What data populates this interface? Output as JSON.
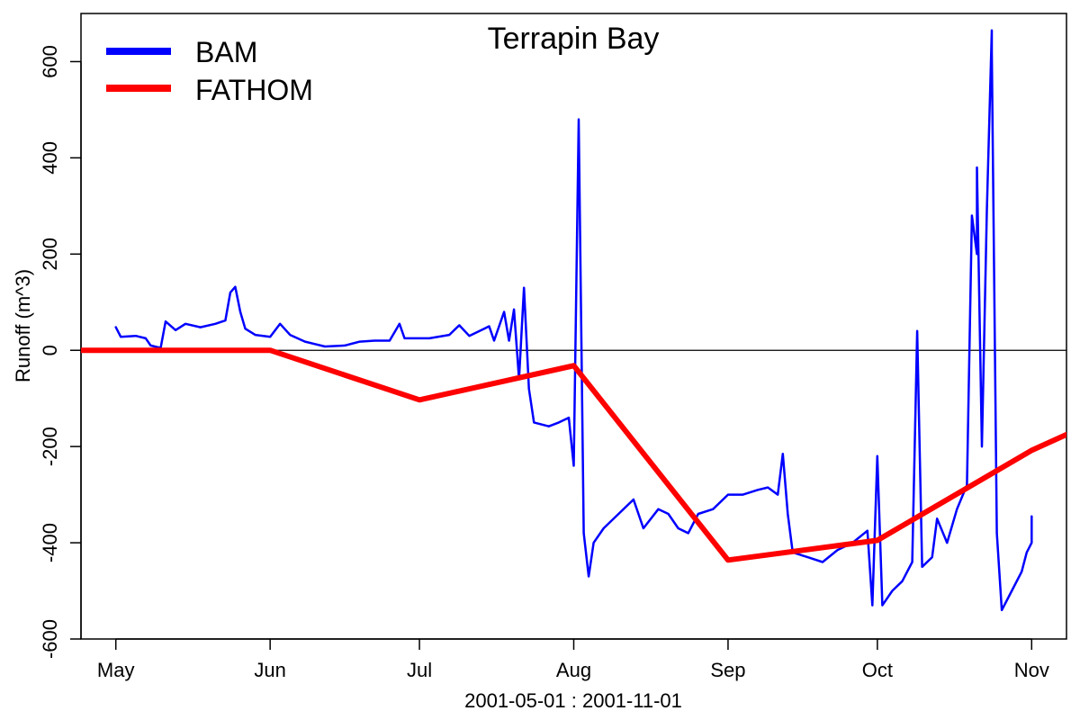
{
  "chart_data": {
    "type": "line",
    "title": "Terrapin Bay",
    "xlabel": "2001-05-01 : 2001-11-01",
    "ylabel": "Runoff (m^3)",
    "xlim": [
      "2001-04-24",
      "2001-11-08"
    ],
    "ylim": [
      -600,
      700
    ],
    "x_ticks": [
      {
        "date": "2001-05-01",
        "label": "May"
      },
      {
        "date": "2001-06-01",
        "label": "Jun"
      },
      {
        "date": "2001-07-01",
        "label": "Jul"
      },
      {
        "date": "2001-08-01",
        "label": "Aug"
      },
      {
        "date": "2001-09-01",
        "label": "Sep"
      },
      {
        "date": "2001-10-01",
        "label": "Oct"
      },
      {
        "date": "2001-11-01",
        "label": "Nov"
      }
    ],
    "y_ticks": [
      -600,
      -400,
      -200,
      0,
      200,
      400,
      600
    ],
    "zero_line": true,
    "grid": false,
    "legend": {
      "position": "top-left",
      "entries": [
        "BAM",
        "FATHOM"
      ]
    },
    "series": [
      {
        "name": "BAM",
        "color": "#0000ff",
        "points": [
          [
            "2001-05-01",
            48
          ],
          [
            "2001-05-02",
            28
          ],
          [
            "2001-05-05",
            30
          ],
          [
            "2001-05-07",
            25
          ],
          [
            "2001-05-08",
            10
          ],
          [
            "2001-05-10",
            5
          ],
          [
            "2001-05-11",
            60
          ],
          [
            "2001-05-13",
            42
          ],
          [
            "2001-05-15",
            55
          ],
          [
            "2001-05-18",
            48
          ],
          [
            "2001-05-21",
            55
          ],
          [
            "2001-05-23",
            62
          ],
          [
            "2001-05-24",
            120
          ],
          [
            "2001-05-25",
            132
          ],
          [
            "2001-05-26",
            80
          ],
          [
            "2001-05-27",
            45
          ],
          [
            "2001-05-29",
            32
          ],
          [
            "2001-06-01",
            28
          ],
          [
            "2001-06-03",
            55
          ],
          [
            "2001-06-05",
            32
          ],
          [
            "2001-06-08",
            18
          ],
          [
            "2001-06-12",
            8
          ],
          [
            "2001-06-16",
            10
          ],
          [
            "2001-06-19",
            18
          ],
          [
            "2001-06-22",
            20
          ],
          [
            "2001-06-25",
            20
          ],
          [
            "2001-06-27",
            55
          ],
          [
            "2001-06-28",
            25
          ],
          [
            "2001-07-03",
            25
          ],
          [
            "2001-07-07",
            32
          ],
          [
            "2001-07-09",
            52
          ],
          [
            "2001-07-11",
            30
          ],
          [
            "2001-07-14",
            45
          ],
          [
            "2001-07-15",
            50
          ],
          [
            "2001-07-16",
            20
          ],
          [
            "2001-07-18",
            80
          ],
          [
            "2001-07-19",
            20
          ],
          [
            "2001-07-20",
            85
          ],
          [
            "2001-07-21",
            -60
          ],
          [
            "2001-07-22",
            130
          ],
          [
            "2001-07-23",
            -80
          ],
          [
            "2001-07-24",
            -150
          ],
          [
            "2001-07-27",
            -158
          ],
          [
            "2001-07-29",
            -150
          ],
          [
            "2001-07-31",
            -140
          ],
          [
            "2001-08-01",
            -240
          ],
          [
            "2001-08-02",
            480
          ],
          [
            "2001-08-03",
            -380
          ],
          [
            "2001-08-04",
            -470
          ],
          [
            "2001-08-05",
            -400
          ],
          [
            "2001-08-07",
            -370
          ],
          [
            "2001-08-10",
            -340
          ],
          [
            "2001-08-13",
            -310
          ],
          [
            "2001-08-15",
            -370
          ],
          [
            "2001-08-18",
            -330
          ],
          [
            "2001-08-20",
            -340
          ],
          [
            "2001-08-22",
            -370
          ],
          [
            "2001-08-24",
            -380
          ],
          [
            "2001-08-26",
            -340
          ],
          [
            "2001-08-29",
            -330
          ],
          [
            "2001-09-01",
            -300
          ],
          [
            "2001-09-04",
            -300
          ],
          [
            "2001-09-07",
            -290
          ],
          [
            "2001-09-09",
            -285
          ],
          [
            "2001-09-11",
            -300
          ],
          [
            "2001-09-12",
            -215
          ],
          [
            "2001-09-13",
            -340
          ],
          [
            "2001-09-14",
            -420
          ],
          [
            "2001-09-17",
            -430
          ],
          [
            "2001-09-20",
            -440
          ],
          [
            "2001-09-23",
            -415
          ],
          [
            "2001-09-26",
            -400
          ],
          [
            "2001-09-29",
            -375
          ],
          [
            "2001-09-30",
            -530
          ],
          [
            "2001-10-01",
            -220
          ],
          [
            "2001-10-02",
            -530
          ],
          [
            "2001-10-04",
            -500
          ],
          [
            "2001-10-06",
            -480
          ],
          [
            "2001-10-08",
            -440
          ],
          [
            "2001-10-09",
            40
          ],
          [
            "2001-10-10",
            -450
          ],
          [
            "2001-10-12",
            -430
          ],
          [
            "2001-10-13",
            -350
          ],
          [
            "2001-10-15",
            -400
          ],
          [
            "2001-10-17",
            -330
          ],
          [
            "2001-10-19",
            -280
          ],
          [
            "2001-10-20",
            280
          ],
          [
            "2001-10-21",
            200
          ],
          [
            "2001-10-21",
            380
          ],
          [
            "2001-10-22",
            -200
          ],
          [
            "2001-10-23",
            290
          ],
          [
            "2001-10-24",
            665
          ],
          [
            "2001-10-24",
            620
          ],
          [
            "2001-10-25",
            -380
          ],
          [
            "2001-10-26",
            -540
          ],
          [
            "2001-10-28",
            -500
          ],
          [
            "2001-10-30",
            -460
          ],
          [
            "2001-10-31",
            -420
          ],
          [
            "2001-11-01",
            -400
          ],
          [
            "2001-11-01",
            -345
          ]
        ]
      },
      {
        "name": "FATHOM",
        "color": "#ff0000",
        "points": [
          [
            "2001-04-24",
            0
          ],
          [
            "2001-06-01",
            0
          ],
          [
            "2001-07-01",
            -103
          ],
          [
            "2001-08-01",
            -32
          ],
          [
            "2001-09-01",
            -436
          ],
          [
            "2001-10-01",
            -395
          ],
          [
            "2001-11-01",
            -208
          ],
          [
            "2001-11-08",
            -175
          ]
        ]
      }
    ]
  }
}
